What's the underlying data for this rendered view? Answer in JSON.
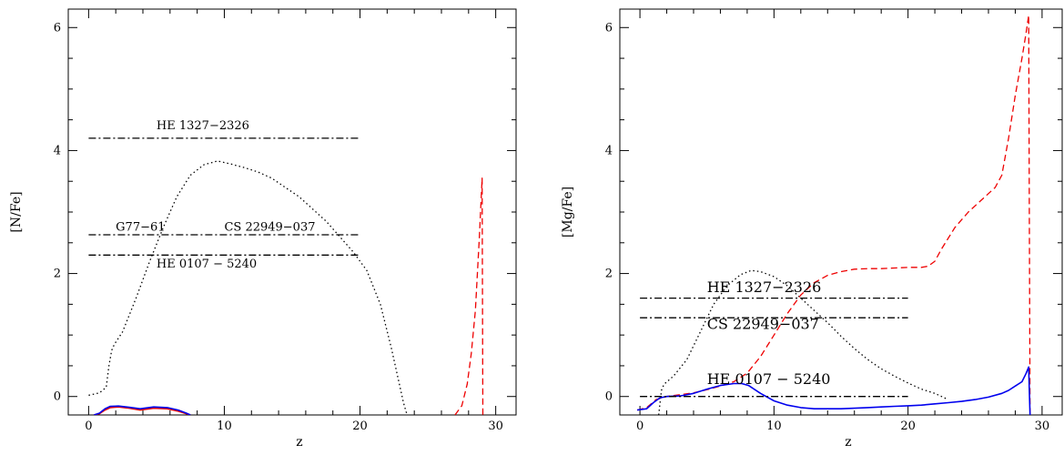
{
  "chart_data": [
    {
      "type": "line",
      "xlabel": "z",
      "ylabel": "[N/Fe]",
      "xlim": [
        -1.5,
        31.5
      ],
      "ylim": [
        -0.3,
        6.3
      ],
      "x_ticks": [
        0,
        10,
        20,
        30
      ],
      "y_ticks": [
        0,
        2,
        4,
        6
      ],
      "x_ticks_minor": [
        2,
        4,
        6,
        8,
        12,
        14,
        16,
        18,
        22,
        24,
        26,
        28
      ],
      "y_ticks_minor": [
        0.5,
        1,
        1.5,
        2.5,
        3,
        3.5,
        4.5,
        5,
        5.5
      ],
      "series": [
        {
          "style": "dotted",
          "color": "#000000",
          "x": [
            0,
            0.8,
            1.3,
            1.5,
            1.7,
            1.9,
            2.5,
            3.5,
            4.5,
            5.5,
            6.5,
            7.5,
            8.5,
            9.5,
            10.5,
            11.5,
            12.5,
            13.5,
            14.5,
            15.5,
            16.5,
            17.5,
            18.5,
            19.5,
            20.5,
            21.5,
            22.3,
            22.9,
            23.2,
            23.4,
            23.5
          ],
          "y": [
            0.02,
            0.06,
            0.15,
            0.5,
            0.75,
            0.85,
            1.05,
            1.6,
            2.2,
            2.75,
            3.25,
            3.6,
            3.77,
            3.83,
            3.78,
            3.72,
            3.65,
            3.55,
            3.4,
            3.25,
            3.05,
            2.85,
            2.6,
            2.35,
            2.05,
            1.5,
            0.8,
            0.2,
            -0.1,
            -0.25,
            -0.3
          ]
        },
        {
          "style": "dashed",
          "color": "#ee0000",
          "x": [
            27.0,
            27.5,
            27.9,
            28.2,
            28.5,
            28.8,
            29.0,
            29.05
          ],
          "y": [
            -0.3,
            -0.15,
            0.2,
            0.7,
            1.4,
            2.6,
            3.55,
            -0.3
          ]
        },
        {
          "style": "solid",
          "color": "#ee0000",
          "x": [
            0.4,
            0.8,
            1.2,
            1.6,
            2.2,
            3.0,
            3.8,
            4.8,
            5.8,
            6.6,
            7.2,
            7.5
          ],
          "y": [
            -0.3,
            -0.28,
            -0.22,
            -0.18,
            -0.17,
            -0.19,
            -0.22,
            -0.19,
            -0.2,
            -0.24,
            -0.28,
            -0.3
          ]
        },
        {
          "style": "solid",
          "color": "#0000ee",
          "x": [
            0.4,
            0.8,
            1.2,
            1.6,
            2.2,
            3.0,
            3.8,
            4.8,
            5.8,
            6.6,
            7.2,
            7.5
          ],
          "y": [
            -0.3,
            -0.27,
            -0.2,
            -0.16,
            -0.155,
            -0.175,
            -0.2,
            -0.17,
            -0.18,
            -0.22,
            -0.27,
            -0.3
          ]
        },
        {
          "style": "dashdot",
          "color": "#000000",
          "x": [
            0,
            20
          ],
          "y": [
            4.2,
            4.2
          ]
        },
        {
          "style": "dashdot",
          "color": "#000000",
          "x": [
            0,
            20
          ],
          "y": [
            2.63,
            2.63
          ]
        },
        {
          "style": "dashdot",
          "color": "#000000",
          "x": [
            0,
            20
          ],
          "y": [
            2.3,
            2.3
          ]
        }
      ],
      "annotations": [
        {
          "text": "HE 1327−2326",
          "x": 5.0,
          "y": 4.35,
          "size": "small"
        },
        {
          "text": "G77−61",
          "x": 2.0,
          "y": 2.7,
          "size": "small"
        },
        {
          "text": "CS 22949−037",
          "x": 10.0,
          "y": 2.7,
          "size": "small"
        },
        {
          "text": "HE 0107 − 5240",
          "x": 5.0,
          "y": 2.1,
          "size": "small"
        }
      ]
    },
    {
      "type": "line",
      "xlabel": "z",
      "ylabel": "[Mg/Fe]",
      "xlim": [
        -1.5,
        31.5
      ],
      "ylim": [
        -0.3,
        6.3
      ],
      "x_ticks": [
        0,
        10,
        20,
        30
      ],
      "y_ticks": [
        0,
        2,
        4,
        6
      ],
      "x_ticks_minor": [
        2,
        4,
        6,
        8,
        12,
        14,
        16,
        18,
        22,
        24,
        26,
        28
      ],
      "y_ticks_minor": [
        0.5,
        1,
        1.5,
        2.5,
        3,
        3.5,
        4.5,
        5,
        5.5
      ],
      "series": [
        {
          "style": "dotted",
          "color": "#000000",
          "x": [
            1.4,
            1.6,
            1.8,
            2.5,
            3.5,
            4.5,
            5.5,
            6.5,
            7.5,
            8.3,
            9.0,
            10.0,
            11.0,
            12.0,
            13.0,
            14.0,
            15.0,
            16.0,
            17.0,
            18.0,
            19.0,
            20.0,
            21.0,
            22.0,
            23.0
          ],
          "y": [
            -0.3,
            0.1,
            0.2,
            0.33,
            0.6,
            1.05,
            1.5,
            1.8,
            1.98,
            2.05,
            2.03,
            1.95,
            1.8,
            1.6,
            1.4,
            1.2,
            0.98,
            0.78,
            0.6,
            0.45,
            0.33,
            0.22,
            0.12,
            0.05,
            -0.05
          ]
        },
        {
          "style": "dashed",
          "color": "#ee0000",
          "x": [
            -0.2,
            0.5,
            1.2,
            2.0,
            3.0,
            4.0,
            5.0,
            6.0,
            7.0,
            8.0,
            9.0,
            10.0,
            11.0,
            12.0,
            13.0,
            14.0,
            15.0,
            16.0,
            17.0,
            18.0,
            19.0,
            20.0,
            21.0,
            21.5,
            22.0,
            22.5,
            23.5,
            24.5,
            25.5,
            26.5,
            27.0,
            27.5,
            28.0,
            28.5,
            28.8,
            29.0,
            29.05,
            29.1
          ],
          "y": [
            -0.22,
            -0.18,
            -0.05,
            0.0,
            0.03,
            0.06,
            0.11,
            0.17,
            0.24,
            0.38,
            0.65,
            1.0,
            1.35,
            1.65,
            1.85,
            1.97,
            2.03,
            2.07,
            2.08,
            2.08,
            2.09,
            2.1,
            2.1,
            2.12,
            2.2,
            2.4,
            2.75,
            3.0,
            3.2,
            3.4,
            3.6,
            4.2,
            4.9,
            5.5,
            5.9,
            6.2,
            3.0,
            -0.3
          ]
        },
        {
          "style": "solid",
          "color": "#0000ee",
          "x": [
            -0.2,
            0.5,
            1.0,
            1.5,
            2.0,
            3.0,
            4.0,
            5.0,
            6.0,
            7.0,
            7.6,
            8.1,
            9.0,
            10.0,
            11.0,
            12.0,
            13.0,
            14.0,
            15.0,
            16.0,
            17.0,
            18.0,
            19.0,
            20.0,
            21.0,
            22.0,
            23.0,
            24.0,
            25.0,
            26.0,
            27.0,
            27.5,
            28.0,
            28.5,
            28.8,
            29.0,
            29.05,
            29.1
          ],
          "y": [
            -0.22,
            -0.2,
            -0.1,
            -0.02,
            0.0,
            0.01,
            0.05,
            0.12,
            0.18,
            0.21,
            0.21,
            0.18,
            0.05,
            -0.07,
            -0.14,
            -0.18,
            -0.2,
            -0.2,
            -0.2,
            -0.19,
            -0.18,
            -0.17,
            -0.16,
            -0.15,
            -0.14,
            -0.12,
            -0.1,
            -0.08,
            -0.05,
            -0.01,
            0.05,
            0.1,
            0.17,
            0.24,
            0.37,
            0.48,
            0.1,
            -0.3
          ]
        },
        {
          "style": "dashdot",
          "color": "#000000",
          "x": [
            0,
            20
          ],
          "y": [
            1.6,
            1.6
          ]
        },
        {
          "style": "dashdot",
          "color": "#000000",
          "x": [
            0,
            20
          ],
          "y": [
            1.28,
            1.28
          ]
        },
        {
          "style": "dashdot",
          "color": "#000000",
          "x": [
            0,
            20
          ],
          "y": [
            0.0,
            0.0
          ]
        }
      ],
      "annotations": [
        {
          "text": "HE 1327−2326",
          "x": 5.0,
          "y": 1.7,
          "size": "large"
        },
        {
          "text": "CS 22949−037",
          "x": 5.0,
          "y": 1.1,
          "size": "large"
        },
        {
          "text": "HE 0107 − 5240",
          "x": 5.0,
          "y": 0.2,
          "size": "large"
        }
      ]
    }
  ]
}
